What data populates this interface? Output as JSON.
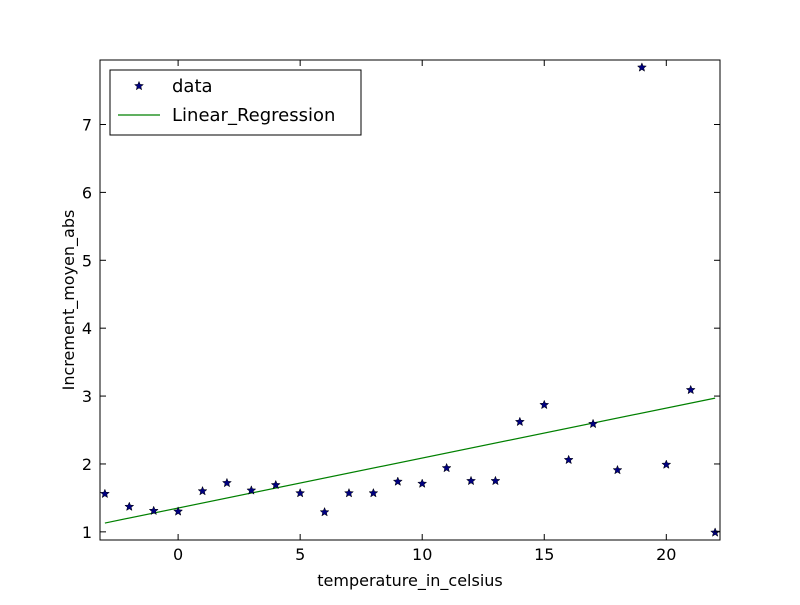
{
  "chart_data": {
    "type": "scatter",
    "title": "",
    "xlabel": "temperature_in_celsius",
    "ylabel": "Increment_moyen_abs",
    "xlim": [
      -3.2,
      22.2
    ],
    "ylim": [
      0.88,
      7.95
    ],
    "x_ticks": [
      0,
      5,
      10,
      15,
      20
    ],
    "y_ticks": [
      1,
      2,
      3,
      4,
      5,
      6,
      7
    ],
    "grid": false,
    "legend": {
      "position": "top-left",
      "entries": [
        {
          "label": "data",
          "marker": "star",
          "color": "#000080"
        },
        {
          "label": "Linear_Regression",
          "marker": "line",
          "color": "#008000"
        }
      ]
    },
    "series": [
      {
        "name": "data",
        "kind": "scatter",
        "marker": "star",
        "color": "#000080",
        "points": [
          {
            "x": -3,
            "y": 1.56
          },
          {
            "x": -2,
            "y": 1.37
          },
          {
            "x": -1,
            "y": 1.31
          },
          {
            "x": 0,
            "y": 1.3
          },
          {
            "x": 1,
            "y": 1.6
          },
          {
            "x": 2,
            "y": 1.72
          },
          {
            "x": 3,
            "y": 1.61
          },
          {
            "x": 4,
            "y": 1.69
          },
          {
            "x": 5,
            "y": 1.57
          },
          {
            "x": 6,
            "y": 1.29
          },
          {
            "x": 7,
            "y": 1.57
          },
          {
            "x": 8,
            "y": 1.57
          },
          {
            "x": 9,
            "y": 1.74
          },
          {
            "x": 10,
            "y": 1.71
          },
          {
            "x": 11,
            "y": 1.94
          },
          {
            "x": 12,
            "y": 1.75
          },
          {
            "x": 13,
            "y": 1.75
          },
          {
            "x": 14,
            "y": 2.62
          },
          {
            "x": 15,
            "y": 2.87
          },
          {
            "x": 16,
            "y": 2.06
          },
          {
            "x": 17,
            "y": 2.59
          },
          {
            "x": 18,
            "y": 1.91
          },
          {
            "x": 19,
            "y": 7.84
          },
          {
            "x": 20,
            "y": 1.99
          },
          {
            "x": 21,
            "y": 3.09
          },
          {
            "x": 22,
            "y": 0.99
          }
        ]
      },
      {
        "name": "Linear_Regression",
        "kind": "line",
        "color": "#008000",
        "points": [
          {
            "x": -3,
            "y": 1.13
          },
          {
            "x": 22,
            "y": 2.97
          }
        ]
      }
    ]
  }
}
